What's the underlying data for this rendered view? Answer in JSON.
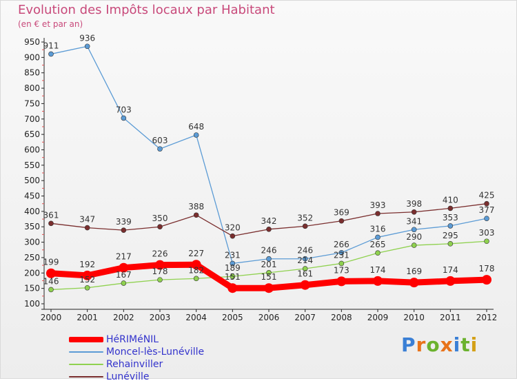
{
  "header": {
    "title": "Evolution des Impôts locaux par Habitant",
    "subtitle": "(en € et par an)"
  },
  "logo": {
    "text": "Proxiti",
    "colors": [
      "#3a7fd5",
      "#e8731a",
      "#6bb22e",
      "#e8731a",
      "#3a7fd5",
      "#6bb22e",
      "#d4a017"
    ]
  },
  "chart_data": {
    "type": "line",
    "x": [
      2000,
      2001,
      2002,
      2003,
      2004,
      2005,
      2006,
      2007,
      2008,
      2009,
      2010,
      2011,
      2012
    ],
    "ylim": [
      100,
      950
    ],
    "yticks": [
      100,
      150,
      200,
      250,
      300,
      350,
      400,
      450,
      500,
      550,
      600,
      650,
      700,
      750,
      800,
      850,
      900,
      950
    ],
    "grid": false,
    "legend_position": "bottom-left",
    "series": [
      {
        "name": "HéRIMéNIL",
        "color": "#ff0000",
        "values": [
          199,
          192,
          217,
          226,
          227,
          151,
          151,
          161,
          173,
          174,
          169,
          174,
          178
        ],
        "labels": [
          "199",
          "192",
          "217",
          "226",
          "227",
          "151",
          "151",
          "161",
          "173",
          "174",
          "169",
          "174",
          "178"
        ]
      },
      {
        "name": "Moncel-lès-Lunéville",
        "color": "#5b9bd5",
        "values": [
          911,
          936,
          703,
          603,
          648,
          231,
          246,
          246,
          266,
          316,
          341,
          353,
          377
        ],
        "labels": [
          "911",
          "936",
          "703",
          "603",
          "648",
          "231",
          "246",
          "246",
          "266",
          "316",
          "341",
          "353",
          "377"
        ]
      },
      {
        "name": "Rehainviller",
        "color": "#8fd14f",
        "values": [
          146,
          152,
          167,
          178,
          182,
          189,
          201,
          214,
          231,
          265,
          290,
          295,
          303
        ],
        "labels": [
          "146",
          "152",
          "167",
          "178",
          "182",
          "189",
          "201",
          "214",
          "231",
          "265",
          "290",
          "295",
          "303"
        ]
      },
      {
        "name": "Lunéville",
        "color": "#7a2e2e",
        "values": [
          361,
          347,
          339,
          350,
          388,
          320,
          342,
          352,
          369,
          393,
          398,
          410,
          425
        ],
        "labels": [
          "361",
          "347",
          "339",
          "350",
          "388",
          "320",
          "342",
          "352",
          "369",
          "393",
          "398",
          "410",
          "425"
        ]
      }
    ]
  }
}
